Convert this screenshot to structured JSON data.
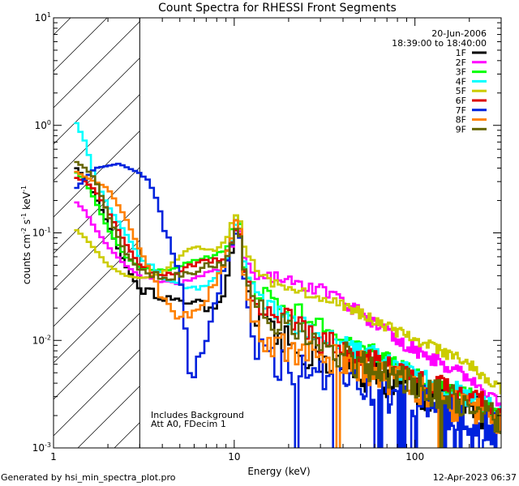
{
  "chart_data": {
    "type": "line",
    "title": "Count Spectra for RHESSI Front Segments",
    "xlabel": "Energy (keV)",
    "ylabel": "counts cm",
    "ylabel_parts": [
      "counts cm",
      "-2",
      " s",
      "-1",
      " keV",
      "-1"
    ],
    "x_scale": "log",
    "y_scale": "log",
    "xlim": [
      1,
      300
    ],
    "ylim": [
      0.001,
      10
    ],
    "x_tick_labels": [
      {
        "value": 1,
        "label": "1"
      },
      {
        "value": 10,
        "label": "10"
      },
      {
        "value": 100,
        "label": "100"
      }
    ],
    "y_tick_labels": [
      {
        "value": 0.001,
        "base": "10",
        "exp": "-3"
      },
      {
        "value": 0.01,
        "base": "10",
        "exp": "-2"
      },
      {
        "value": 0.1,
        "base": "10",
        "exp": "-1"
      },
      {
        "value": 1,
        "base": "10",
        "exp": "0"
      },
      {
        "value": 10,
        "base": "10",
        "exp": "1"
      }
    ],
    "date": "20-Jun-2006",
    "time_range": "18:39:00 to 18:40:00",
    "annotations": [
      "Includes Background",
      "Att A0, FDecim 1"
    ],
    "hatched_region_max_kev": 3,
    "legend_position": "top-right",
    "series": [
      {
        "name": "1F",
        "color": "#000000",
        "base": 1.0,
        "drop": 0,
        "noise": 0.32,
        "points": [
          [
            1.3,
            0.42
          ],
          [
            1.5,
            0.32
          ],
          [
            1.7,
            0.22
          ],
          [
            2.0,
            0.12
          ],
          [
            2.5,
            0.05
          ],
          [
            3.0,
            0.03
          ],
          [
            4.0,
            0.026
          ],
          [
            5.0,
            0.022
          ],
          [
            6.0,
            0.024
          ],
          [
            7.0,
            0.02
          ],
          [
            8.0,
            0.022
          ],
          [
            9.0,
            0.03
          ],
          [
            10.0,
            0.1
          ],
          [
            10.6,
            0.17
          ],
          [
            11.2,
            0.045
          ],
          [
            13.0,
            0.014
          ],
          [
            16.0,
            0.011
          ],
          [
            20.0,
            0.009
          ],
          [
            30.0,
            0.007
          ],
          [
            50.0,
            0.005
          ],
          [
            80.0,
            0.004
          ],
          [
            120.0,
            0.003
          ],
          [
            200.0,
            0.0024
          ],
          [
            300.0,
            0.0018
          ]
        ]
      },
      {
        "name": "2F",
        "color": "#ff00ff",
        "base": 1.0,
        "drop": 0,
        "noise": 0.12,
        "points": [
          [
            1.3,
            0.2
          ],
          [
            1.5,
            0.16
          ],
          [
            1.7,
            0.11
          ],
          [
            2.0,
            0.075
          ],
          [
            2.5,
            0.05
          ],
          [
            3.0,
            0.04
          ],
          [
            4.0,
            0.035
          ],
          [
            5.0,
            0.033
          ],
          [
            6.0,
            0.038
          ],
          [
            7.0,
            0.042
          ],
          [
            8.0,
            0.045
          ],
          [
            9.0,
            0.05
          ],
          [
            10.0,
            0.09
          ],
          [
            10.6,
            0.13
          ],
          [
            11.2,
            0.06
          ],
          [
            13.0,
            0.04
          ],
          [
            16.0,
            0.038
          ],
          [
            20.0,
            0.036
          ],
          [
            30.0,
            0.03
          ],
          [
            50.0,
            0.018
          ],
          [
            80.0,
            0.01
          ],
          [
            120.0,
            0.007
          ],
          [
            200.0,
            0.0045
          ],
          [
            300.0,
            0.0025
          ]
        ]
      },
      {
        "name": "3F",
        "color": "#00ff00",
        "base": 1.0,
        "drop": 0,
        "noise": 0.16,
        "points": [
          [
            1.3,
            0.38
          ],
          [
            1.5,
            0.3
          ],
          [
            1.7,
            0.2
          ],
          [
            2.0,
            0.11
          ],
          [
            2.5,
            0.06
          ],
          [
            3.0,
            0.048
          ],
          [
            4.0,
            0.045
          ],
          [
            5.0,
            0.05
          ],
          [
            6.0,
            0.055
          ],
          [
            7.0,
            0.06
          ],
          [
            8.0,
            0.062
          ],
          [
            9.0,
            0.07
          ],
          [
            10.0,
            0.13
          ],
          [
            10.6,
            0.17
          ],
          [
            11.2,
            0.05
          ],
          [
            13.0,
            0.03
          ],
          [
            16.0,
            0.025
          ],
          [
            20.0,
            0.02
          ],
          [
            30.0,
            0.015
          ],
          [
            50.0,
            0.009
          ],
          [
            80.0,
            0.006
          ],
          [
            120.0,
            0.004
          ],
          [
            200.0,
            0.003
          ],
          [
            300.0,
            0.002
          ]
        ]
      },
      {
        "name": "4F",
        "color": "#00ffff",
        "base": 1.0,
        "drop": 0,
        "noise": 0.2,
        "points": [
          [
            1.3,
            1.15
          ],
          [
            1.5,
            0.7
          ],
          [
            1.7,
            0.32
          ],
          [
            2.0,
            0.18
          ],
          [
            2.5,
            0.1
          ],
          [
            3.0,
            0.06
          ],
          [
            4.0,
            0.04
          ],
          [
            5.0,
            0.032
          ],
          [
            6.0,
            0.03
          ],
          [
            7.0,
            0.033
          ],
          [
            8.0,
            0.04
          ],
          [
            9.0,
            0.05
          ],
          [
            10.0,
            0.1
          ],
          [
            10.6,
            0.16
          ],
          [
            11.2,
            0.06
          ],
          [
            13.0,
            0.025
          ],
          [
            16.0,
            0.02
          ],
          [
            20.0,
            0.015
          ],
          [
            30.0,
            0.011
          ],
          [
            50.0,
            0.008
          ],
          [
            80.0,
            0.0055
          ],
          [
            120.0,
            0.004
          ],
          [
            200.0,
            0.003
          ],
          [
            300.0,
            0.002
          ]
        ]
      },
      {
        "name": "5F",
        "color": "#cccc00",
        "base": 1.0,
        "drop": 0,
        "noise": 0.1,
        "points": [
          [
            1.3,
            0.11
          ],
          [
            1.5,
            0.09
          ],
          [
            1.7,
            0.07
          ],
          [
            2.0,
            0.05
          ],
          [
            2.5,
            0.04
          ],
          [
            3.0,
            0.038
          ],
          [
            4.0,
            0.042
          ],
          [
            5.0,
            0.06
          ],
          [
            6.0,
            0.075
          ],
          [
            7.0,
            0.068
          ],
          [
            8.0,
            0.07
          ],
          [
            9.0,
            0.085
          ],
          [
            10.0,
            0.14
          ],
          [
            10.6,
            0.16
          ],
          [
            11.2,
            0.08
          ],
          [
            13.0,
            0.045
          ],
          [
            16.0,
            0.035
          ],
          [
            20.0,
            0.03
          ],
          [
            30.0,
            0.025
          ],
          [
            50.0,
            0.018
          ],
          [
            80.0,
            0.012
          ],
          [
            120.0,
            0.009
          ],
          [
            200.0,
            0.006
          ],
          [
            300.0,
            0.0035
          ]
        ]
      },
      {
        "name": "6F",
        "color": "#dd0000",
        "base": 1.0,
        "drop": 0,
        "noise": 0.22,
        "points": [
          [
            1.3,
            0.33
          ],
          [
            1.5,
            0.3
          ],
          [
            1.7,
            0.25
          ],
          [
            2.0,
            0.16
          ],
          [
            2.5,
            0.08
          ],
          [
            3.0,
            0.05
          ],
          [
            4.0,
            0.04
          ],
          [
            5.0,
            0.045
          ],
          [
            6.0,
            0.05
          ],
          [
            7.0,
            0.055
          ],
          [
            8.0,
            0.055
          ],
          [
            9.0,
            0.06
          ],
          [
            10.0,
            0.1
          ],
          [
            10.6,
            0.13
          ],
          [
            11.2,
            0.05
          ],
          [
            13.0,
            0.025
          ],
          [
            16.0,
            0.018
          ],
          [
            20.0,
            0.015
          ],
          [
            30.0,
            0.01
          ],
          [
            50.0,
            0.007
          ],
          [
            80.0,
            0.005
          ],
          [
            120.0,
            0.004
          ],
          [
            200.0,
            0.003
          ],
          [
            300.0,
            0.002
          ]
        ]
      },
      {
        "name": "7F",
        "color": "#0022dd",
        "base": 1.0,
        "drop": 0.2,
        "noise": 0.35,
        "points": [
          [
            1.3,
            0.25
          ],
          [
            1.5,
            0.32
          ],
          [
            1.7,
            0.4
          ],
          [
            2.0,
            0.42
          ],
          [
            2.3,
            0.44
          ],
          [
            2.6,
            0.4
          ],
          [
            3.0,
            0.36
          ],
          [
            3.3,
            0.3
          ],
          [
            3.7,
            0.2
          ],
          [
            4.2,
            0.1
          ],
          [
            4.8,
            0.05
          ],
          [
            5.2,
            0.025
          ],
          [
            5.6,
            0.006
          ],
          [
            5.9,
            0.004
          ],
          [
            6.3,
            0.007
          ],
          [
            7.0,
            0.01
          ],
          [
            8.0,
            0.025
          ],
          [
            9.0,
            0.05
          ],
          [
            10.0,
            0.1
          ],
          [
            10.6,
            0.12
          ],
          [
            11.2,
            0.04
          ],
          [
            13.0,
            0.01
          ],
          [
            16.0,
            0.007
          ],
          [
            20.0,
            0.006
          ],
          [
            30.0,
            0.005
          ],
          [
            50.0,
            0.004
          ],
          [
            80.0,
            0.003
          ],
          [
            120.0,
            0.0025
          ],
          [
            200.0,
            0.002
          ],
          [
            300.0,
            0.0015
          ]
        ]
      },
      {
        "name": "8F",
        "color": "#ff8000",
        "base": 1.0,
        "drop": 0.05,
        "noise": 0.3,
        "points": [
          [
            1.3,
            0.38
          ],
          [
            1.5,
            0.33
          ],
          [
            1.7,
            0.3
          ],
          [
            2.0,
            0.26
          ],
          [
            2.5,
            0.14
          ],
          [
            3.0,
            0.07
          ],
          [
            3.5,
            0.04
          ],
          [
            4.0,
            0.025
          ],
          [
            4.5,
            0.018
          ],
          [
            5.0,
            0.016
          ],
          [
            6.0,
            0.018
          ],
          [
            7.0,
            0.025
          ],
          [
            8.0,
            0.035
          ],
          [
            9.0,
            0.055
          ],
          [
            10.0,
            0.11
          ],
          [
            10.6,
            0.14
          ],
          [
            11.2,
            0.045
          ],
          [
            13.0,
            0.012
          ],
          [
            16.0,
            0.01
          ],
          [
            20.0,
            0.008
          ],
          [
            30.0,
            0.007
          ],
          [
            50.0,
            0.006
          ],
          [
            80.0,
            0.004
          ],
          [
            120.0,
            0.003
          ],
          [
            200.0,
            0.0022
          ],
          [
            300.0,
            0.0016
          ]
        ]
      },
      {
        "name": "9F",
        "color": "#666600",
        "base": 1.0,
        "drop": 0.03,
        "noise": 0.28,
        "points": [
          [
            1.3,
            0.47
          ],
          [
            1.5,
            0.4
          ],
          [
            1.7,
            0.32
          ],
          [
            2.0,
            0.15
          ],
          [
            2.5,
            0.065
          ],
          [
            3.0,
            0.045
          ],
          [
            4.0,
            0.038
          ],
          [
            5.0,
            0.04
          ],
          [
            6.0,
            0.045
          ],
          [
            7.0,
            0.05
          ],
          [
            8.0,
            0.05
          ],
          [
            9.0,
            0.055
          ],
          [
            10.0,
            0.09
          ],
          [
            10.6,
            0.13
          ],
          [
            11.2,
            0.05
          ],
          [
            13.0,
            0.02
          ],
          [
            16.0,
            0.014
          ],
          [
            20.0,
            0.012
          ],
          [
            30.0,
            0.009
          ],
          [
            50.0,
            0.006
          ],
          [
            80.0,
            0.0045
          ],
          [
            120.0,
            0.0035
          ],
          [
            200.0,
            0.0025
          ],
          [
            300.0,
            0.0018
          ]
        ]
      }
    ]
  },
  "footer": {
    "generated_by": "Generated by hsi_min_spectra_plot.pro",
    "timestamp": "12-Apr-2023 06:37"
  }
}
